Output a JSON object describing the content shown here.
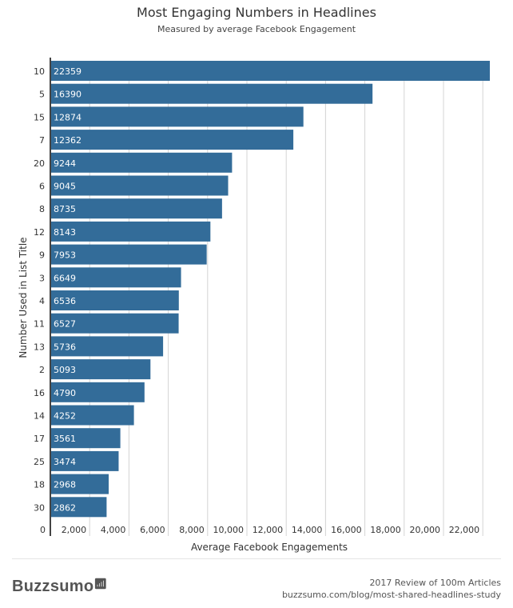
{
  "chart_data": {
    "type": "bar",
    "orientation": "horizontal",
    "title": "Most Engaging Numbers in Headlines",
    "subtitle": "Measured by average Facebook Engagement",
    "xlabel": "Average Facebook Engagements",
    "ylabel": "Number Used in List Title",
    "categories": [
      "10",
      "5",
      "15",
      "7",
      "20",
      "6",
      "8",
      "12",
      "9",
      "3",
      "4",
      "11",
      "13",
      "2",
      "16",
      "14",
      "17",
      "25",
      "18",
      "30"
    ],
    "values": [
      22359,
      16390,
      12874,
      12362,
      9244,
      9045,
      8735,
      8143,
      7953,
      6649,
      6536,
      6527,
      5736,
      5093,
      4790,
      4252,
      3561,
      3474,
      2968,
      2862
    ],
    "xticks": [
      "0",
      "2,000",
      "4,000",
      "6,000",
      "8,000",
      "10,000",
      "12,000",
      "14,000",
      "16,000",
      "18,000",
      "20,000",
      "22,000"
    ],
    "xlim": [
      0,
      22359
    ],
    "grid": true,
    "data_labels": true,
    "bar_color": "#336c99"
  },
  "footer": {
    "logo": "Buzzsumo",
    "line1": "2017 Review of 100m Articles",
    "line2": "buzzsumo.com/blog/most-shared-headlines-study"
  }
}
